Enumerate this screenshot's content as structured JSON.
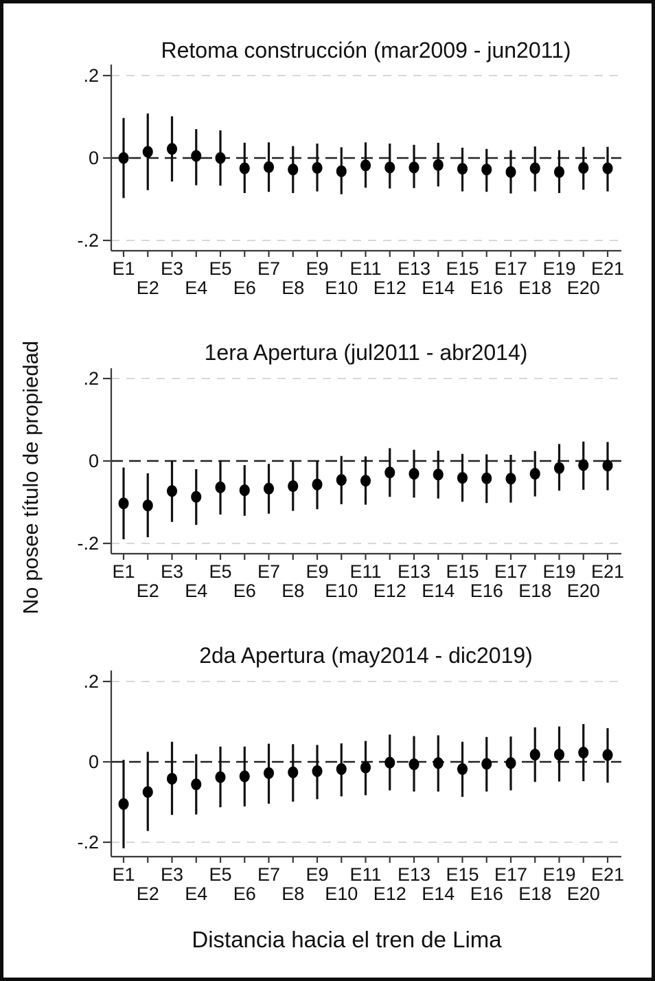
{
  "figure": {
    "ylabel": "No posee título de propiedad",
    "xlabel": "Distancia hacia el tren de Lima",
    "background": "#ffffff",
    "frame_color": "#0d0d0d",
    "marker_color": "#000000",
    "ci_color": "#111111",
    "axis_color": "#3a3a3a",
    "grid_color": "#d8d8d8",
    "zero_line_color": "#222222"
  },
  "chart_data": [
    {
      "type": "scatter",
      "subtype": "coefficient-plot-with-ci",
      "title": "Retoma construcción (mar2009 - jun2011)",
      "yticks": [
        ".2",
        "0",
        "-.2"
      ],
      "ytick_values": [
        0.2,
        0,
        -0.2
      ],
      "ylim": [
        -0.24,
        0.24
      ],
      "zero_line": "dashed",
      "gridlines": "dashed at +0.2 and -0.2",
      "categories": [
        "E1",
        "E2",
        "E3",
        "E4",
        "E5",
        "E6",
        "E7",
        "E8",
        "E9",
        "E10",
        "E11",
        "E12",
        "E13",
        "E14",
        "E15",
        "E16",
        "E17",
        "E18",
        "E19",
        "E20",
        "E21"
      ],
      "values": [
        0.0,
        0.015,
        0.022,
        0.005,
        0.0,
        -0.025,
        -0.022,
        -0.028,
        -0.024,
        -0.032,
        -0.018,
        -0.023,
        -0.023,
        -0.017,
        -0.026,
        -0.028,
        -0.034,
        -0.025,
        -0.034,
        -0.024,
        -0.025
      ],
      "ci_high": [
        0.097,
        0.108,
        0.101,
        0.07,
        0.067,
        0.037,
        0.038,
        0.029,
        0.035,
        0.026,
        0.038,
        0.035,
        0.032,
        0.037,
        0.025,
        0.022,
        0.019,
        0.028,
        0.019,
        0.027,
        0.027
      ],
      "ci_low": [
        -0.097,
        -0.078,
        -0.057,
        -0.066,
        -0.067,
        -0.085,
        -0.082,
        -0.085,
        -0.081,
        -0.088,
        -0.072,
        -0.074,
        -0.073,
        -0.069,
        -0.081,
        -0.082,
        -0.086,
        -0.081,
        -0.085,
        -0.077,
        -0.081
      ]
    },
    {
      "type": "scatter",
      "subtype": "coefficient-plot-with-ci",
      "title": "1era Apertura (jul2011 - abr2014)",
      "yticks": [
        ".2",
        "0",
        "-.2"
      ],
      "ytick_values": [
        0.2,
        0,
        -0.2
      ],
      "ylim": [
        -0.24,
        0.24
      ],
      "zero_line": "dashed",
      "gridlines": "dashed at +0.2 and -0.2",
      "categories": [
        "E1",
        "E2",
        "E3",
        "E4",
        "E5",
        "E6",
        "E7",
        "E8",
        "E9",
        "E10",
        "E11",
        "E12",
        "E13",
        "E14",
        "E15",
        "E16",
        "E17",
        "E18",
        "E19",
        "E20",
        "E21"
      ],
      "values": [
        -0.103,
        -0.108,
        -0.073,
        -0.087,
        -0.064,
        -0.071,
        -0.067,
        -0.061,
        -0.057,
        -0.046,
        -0.048,
        -0.028,
        -0.031,
        -0.033,
        -0.041,
        -0.042,
        -0.043,
        -0.031,
        -0.017,
        -0.01,
        -0.011
      ],
      "ci_high": [
        -0.016,
        -0.03,
        0.0,
        -0.02,
        0.001,
        -0.01,
        -0.007,
        -0.002,
        0.0,
        0.012,
        0.011,
        0.031,
        0.027,
        0.025,
        0.017,
        0.016,
        0.015,
        0.024,
        0.041,
        0.047,
        0.046
      ],
      "ci_low": [
        -0.19,
        -0.185,
        -0.148,
        -0.155,
        -0.13,
        -0.133,
        -0.128,
        -0.121,
        -0.117,
        -0.105,
        -0.106,
        -0.087,
        -0.089,
        -0.091,
        -0.099,
        -0.102,
        -0.101,
        -0.086,
        -0.072,
        -0.07,
        -0.071
      ]
    },
    {
      "type": "scatter",
      "subtype": "coefficient-plot-with-ci",
      "title": "2da Apertura (may2014 - dic2019)",
      "yticks": [
        ".2",
        "0",
        "-.2"
      ],
      "ytick_values": [
        0.2,
        0,
        -0.2
      ],
      "ylim": [
        -0.24,
        0.24
      ],
      "zero_line": "dashed",
      "gridlines": "dashed at +0.2 and -0.2",
      "categories": [
        "E1",
        "E2",
        "E3",
        "E4",
        "E5",
        "E6",
        "E7",
        "E8",
        "E9",
        "E10",
        "E11",
        "E12",
        "E13",
        "E14",
        "E15",
        "E16",
        "E17",
        "E18",
        "E19",
        "E20",
        "E21"
      ],
      "values": [
        -0.105,
        -0.075,
        -0.042,
        -0.056,
        -0.038,
        -0.036,
        -0.028,
        -0.026,
        -0.023,
        -0.018,
        -0.014,
        -0.002,
        -0.006,
        -0.003,
        -0.018,
        -0.005,
        -0.003,
        0.018,
        0.018,
        0.023,
        0.017
      ],
      "ci_high": [
        0.005,
        0.025,
        0.05,
        0.019,
        0.038,
        0.038,
        0.045,
        0.044,
        0.042,
        0.046,
        0.052,
        0.068,
        0.064,
        0.066,
        0.05,
        0.062,
        0.063,
        0.086,
        0.088,
        0.094,
        0.084
      ],
      "ci_low": [
        -0.215,
        -0.172,
        -0.132,
        -0.131,
        -0.113,
        -0.111,
        -0.104,
        -0.099,
        -0.093,
        -0.086,
        -0.083,
        -0.071,
        -0.074,
        -0.074,
        -0.087,
        -0.074,
        -0.071,
        -0.05,
        -0.049,
        -0.048,
        -0.052
      ]
    }
  ]
}
